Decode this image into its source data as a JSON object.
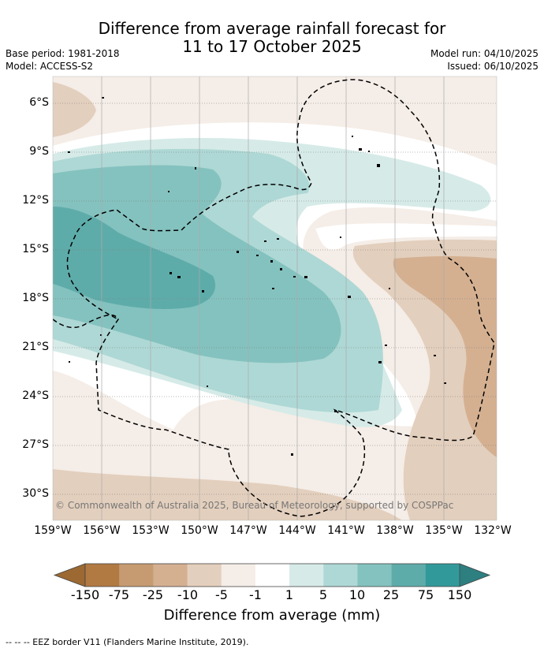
{
  "header": {
    "title_line1": "Difference from average rainfall forecast for",
    "title_line2": "11 to 17 October 2025",
    "base_period": "Base period: 1981-2018",
    "model": "Model: ACCESS-S2",
    "model_run": "Model run: 04/10/2025",
    "issued": "Issued: 06/10/2025"
  },
  "map": {
    "lat_labels": [
      "6°S",
      "9°S",
      "12°S",
      "15°S",
      "18°S",
      "21°S",
      "24°S",
      "27°S",
      "30°S"
    ],
    "lon_labels": [
      "159°W",
      "156°W",
      "153°W",
      "150°W",
      "147°W",
      "144°W",
      "141°W",
      "138°W",
      "135°W",
      "132°W"
    ],
    "copyright": "© Commonwealth of Australia 2025, Bureau of Meteorology, supported by COSPPac"
  },
  "colorbar": {
    "ticks": [
      "-150",
      "-75",
      "-25",
      "-10",
      "-5",
      "-1",
      "1",
      "5",
      "10",
      "25",
      "75",
      "150"
    ],
    "colors": [
      "#b27a43",
      "#c69b71",
      "#d4b091",
      "#e3cfbd",
      "#f5ede7",
      "#ffffff",
      "#d6ebe8",
      "#aed8d5",
      "#84c2bf",
      "#5eacaa",
      "#32999a"
    ],
    "under_color": "#9c6932",
    "over_color": "#2d7f80",
    "title": "Difference from average (mm)"
  },
  "legend": {
    "text": "-- -- -- EEZ border V11 (Flanders Marine Institute, 2019)."
  }
}
